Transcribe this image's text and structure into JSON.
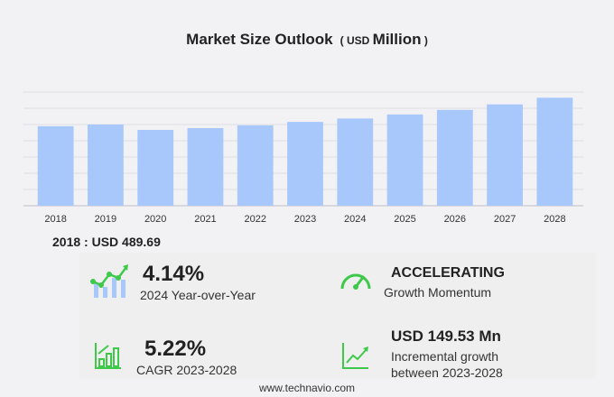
{
  "chart_data": {
    "type": "bar",
    "title": "Market Size Outlook",
    "unit_prefix": "USD",
    "unit": "Million",
    "categories": [
      "2018",
      "2019",
      "2020",
      "2021",
      "2022",
      "2023",
      "2024",
      "2025",
      "2026",
      "2027",
      "2028"
    ],
    "values": [
      489.69,
      500,
      467,
      478,
      495,
      516,
      537,
      562,
      590,
      624,
      665
    ],
    "ylim": [
      0,
      700
    ],
    "grid": true,
    "bar_color": "#a8c8fc"
  },
  "base_year": "2018 : USD  489.69",
  "kpis": {
    "yoy_value": "4.14%",
    "yoy_label": "2024 Year-over-Year",
    "momentum_value": "ACCELERATING",
    "momentum_label": "Growth Momentum",
    "cagr_value": "5.22%",
    "cagr_label": "CAGR 2023-2028",
    "incr_value": "USD 149.53 Mn",
    "incr_label1": "Incremental growth",
    "incr_label2": "between 2023-2028"
  },
  "footer": "www.technavio.com",
  "colors": {
    "accent_green": "#3ec94a",
    "bar": "#a8c8fc"
  }
}
